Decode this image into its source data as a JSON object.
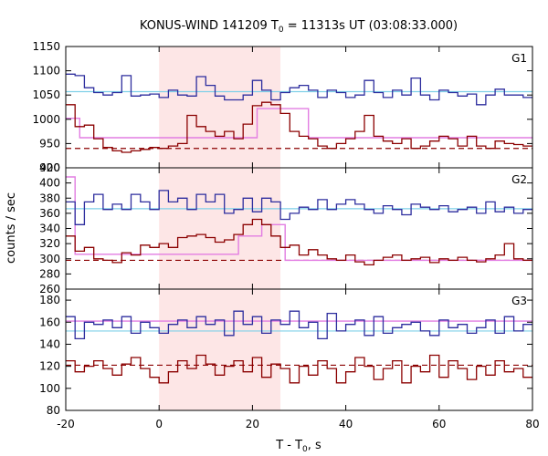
{
  "title": "KONUS-WIND 141209 T",
  "title_sub": "0",
  "title_rest": " = 11313s UT (03:08:33.000)",
  "ylabel": "counts / sec",
  "xlabel": "T - T",
  "xlabel_sub": "0",
  "xlabel_rest": ", s",
  "colors": {
    "high_series": "#2d2d9e",
    "low_series": "#8b0000",
    "high_bg": "#7fd0e8",
    "low_bg": "#8b0000",
    "fit": "#e27de2",
    "shade": "#fde6e6"
  },
  "chart_data": {
    "type": "line",
    "x_range": [
      -20,
      80
    ],
    "x_ticks": [
      -20,
      0,
      20,
      40,
      60,
      80
    ],
    "shaded_interval": [
      0,
      26
    ],
    "panels": [
      {
        "name": "G1",
        "ylim": [
          900,
          1150
        ],
        "yticks": [
          900,
          950,
          1000,
          1050,
          1100,
          1150
        ],
        "series": [
          {
            "role": "high",
            "x_start": -20,
            "bin": 2,
            "values": [
              1093,
              1090,
              1065,
              1055,
              1050,
              1055,
              1090,
              1048,
              1050,
              1052,
              1045,
              1060,
              1050,
              1048,
              1088,
              1070,
              1048,
              1040,
              1040,
              1050,
              1080,
              1060,
              1040,
              1055,
              1065,
              1070,
              1060,
              1045,
              1060,
              1055,
              1045,
              1050,
              1080,
              1055,
              1045,
              1060,
              1050,
              1085,
              1050,
              1040,
              1060,
              1055,
              1048,
              1052,
              1030,
              1050,
              1062,
              1050,
              1050,
              1045
            ]
          },
          {
            "role": "low",
            "x_start": -20,
            "bin": 2,
            "values": [
              1030,
              985,
              988,
              960,
              942,
              935,
              932,
              935,
              938,
              942,
              940,
              945,
              950,
              1008,
              985,
              975,
              965,
              975,
              960,
              990,
              1028,
              1035,
              1030,
              1012,
              975,
              965,
              960,
              945,
              940,
              950,
              960,
              975,
              1008,
              965,
              955,
              950,
              960,
              940,
              945,
              955,
              965,
              960,
              945,
              965,
              945,
              940,
              955,
              950,
              948,
              945
            ]
          }
        ],
        "background": {
          "high": 1057,
          "low": 940
        },
        "fit": {
          "x": [
            -20,
            -17,
            -17,
            21,
            21,
            32,
            32,
            80
          ],
          "y": [
            1002,
            1002,
            962,
            962,
            1022,
            1022,
            962,
            962
          ]
        }
      },
      {
        "name": "G2",
        "ylim": [
          260,
          420
        ],
        "yticks": [
          260,
          280,
          300,
          320,
          340,
          360,
          380,
          400,
          420
        ],
        "series": [
          {
            "role": "high",
            "x_start": -20,
            "bin": 2,
            "values": [
              375,
              345,
              375,
              385,
              365,
              372,
              365,
              385,
              375,
              365,
              390,
              375,
              380,
              365,
              385,
              375,
              385,
              360,
              365,
              380,
              362,
              380,
              375,
              352,
              360,
              368,
              365,
              378,
              365,
              372,
              378,
              372,
              365,
              360,
              370,
              365,
              358,
              372,
              368,
              365,
              370,
              362,
              365,
              368,
              360,
              375,
              362,
              368,
              360,
              365
            ]
          },
          {
            "role": "low",
            "x_start": -20,
            "bin": 2,
            "values": [
              330,
              310,
              315,
              300,
              298,
              295,
              308,
              305,
              318,
              315,
              320,
              315,
              328,
              330,
              332,
              328,
              322,
              325,
              332,
              345,
              352,
              345,
              330,
              315,
              318,
              305,
              312,
              305,
              300,
              298,
              305,
              296,
              292,
              298,
              302,
              305,
              298,
              300,
              302,
              295,
              300,
              298,
              302,
              298,
              296,
              300,
              305,
              320,
              300,
              298
            ]
          }
        ],
        "background": {
          "high": 366,
          "low": 298
        },
        "fit": {
          "x": [
            -20,
            -18,
            -18,
            17,
            17,
            22,
            22,
            27,
            27,
            80
          ],
          "y": [
            408,
            408,
            306,
            306,
            330,
            330,
            345,
            345,
            298,
            298
          ]
        }
      },
      {
        "name": "G3",
        "ylim": [
          80,
          190
        ],
        "yticks": [
          80,
          100,
          120,
          140,
          160,
          180
        ],
        "series": [
          {
            "role": "high",
            "x_start": -20,
            "bin": 2,
            "values": [
              165,
              145,
              160,
              158,
              162,
              155,
              165,
              150,
              160,
              155,
              150,
              158,
              162,
              155,
              165,
              158,
              162,
              148,
              170,
              158,
              165,
              150,
              162,
              158,
              170,
              155,
              160,
              145,
              168,
              152,
              158,
              162,
              148,
              165,
              150,
              155,
              158,
              160,
              152,
              148,
              162,
              155,
              158,
              150,
              155,
              162,
              150,
              165,
              152,
              158
            ]
          },
          {
            "role": "low",
            "x_start": -20,
            "bin": 2,
            "values": [
              125,
              115,
              120,
              125,
              118,
              112,
              122,
              128,
              118,
              110,
              105,
              115,
              125,
              118,
              130,
              122,
              112,
              120,
              125,
              115,
              128,
              110,
              122,
              118,
              105,
              120,
              112,
              125,
              118,
              105,
              115,
              128,
              120,
              108,
              118,
              125,
              105,
              120,
              115,
              130,
              110,
              125,
              118,
              108,
              120,
              112,
              125,
              115,
              118,
              110
            ]
          }
        ],
        "background": {
          "high": 152,
          "low": 121
        },
        "fit": {
          "x": [
            -20,
            80
          ],
          "y": [
            161,
            161
          ]
        }
      }
    ]
  }
}
